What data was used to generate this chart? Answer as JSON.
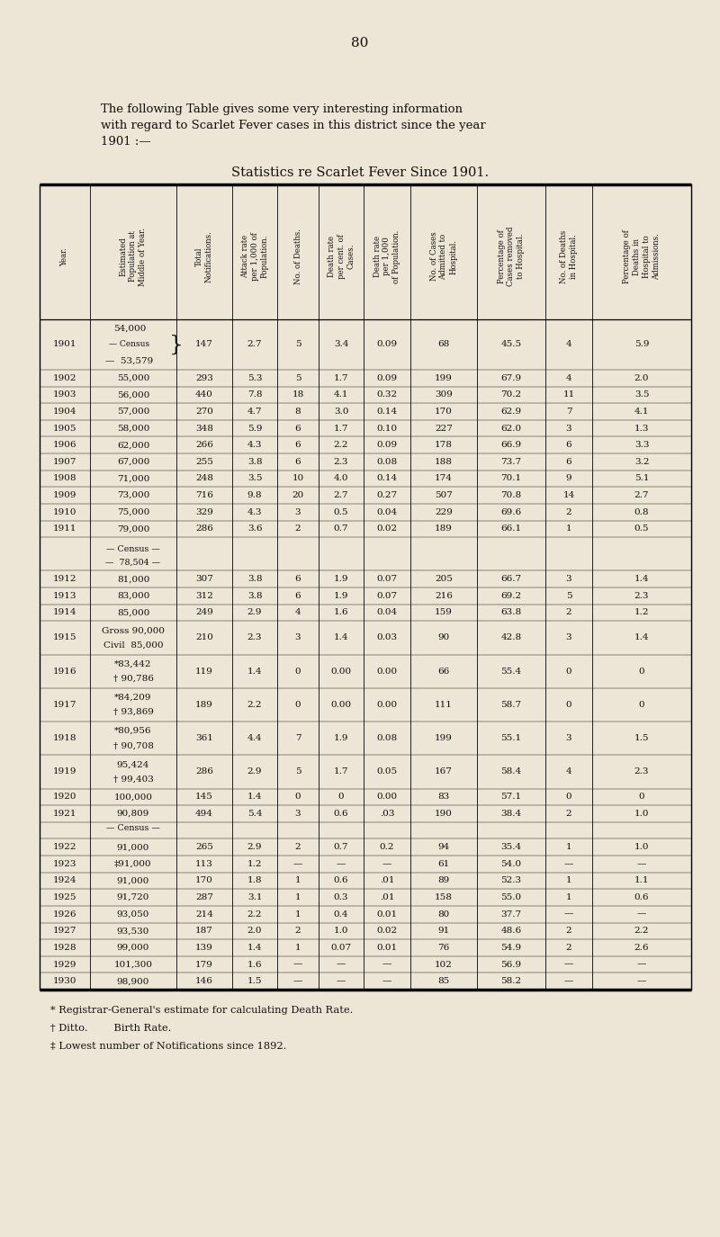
{
  "page_number": "80",
  "intro_line1": "The following Table gives some very interesting information",
  "intro_line2": "with regard to Scarlet Fever cases in this district since the year",
  "intro_line3": "1901 :—",
  "title": "Statistics re Scarlet Fever Since 1901.",
  "col_headers": [
    "Year.",
    "Estimated\nPopulation at\nMiddle of Year.",
    "Total\nNotifications.",
    "Attack rate\nper 1,000 of\nPopulation.",
    "No. of Deaths.",
    "Death rate\nper cent. of\nCases.",
    "Death rate\nper 1,000\nof Population.",
    "No. of Cases\nAdmitted to\nHospital.",
    "Percentage of\nCases removed\nto Hospital.",
    "No. of Deaths\nin Hospital.",
    "Percentage of\nDeaths in\nHospital to\nAdmissions."
  ],
  "rows": [
    {
      "year": "1901",
      "pop": "54,000",
      "pop2": "— Census",
      "pop3": "—  53,579",
      "pop_brace": true,
      "notif": "147",
      "attack": "2.7",
      "deaths": "5",
      "dr_pct": "3.4",
      "dr_1000": "0.09",
      "hosp_cases": "68",
      "pct_hosp": "45.5",
      "hosp_deaths": "4",
      "pct_hosp_deaths": "5.9",
      "tall": 3
    },
    {
      "year": "1902",
      "pop": "55,000",
      "notif": "293",
      "attack": "5.3",
      "deaths": "5",
      "dr_pct": "1.7",
      "dr_1000": "0.09",
      "hosp_cases": "199",
      "pct_hosp": "67.9",
      "hosp_deaths": "4",
      "pct_hosp_deaths": "2.0",
      "tall": 1
    },
    {
      "year": "1903",
      "pop": "56,000",
      "notif": "440",
      "attack": "7.8",
      "deaths": "18",
      "dr_pct": "4.1",
      "dr_1000": "0.32",
      "hosp_cases": "309",
      "pct_hosp": "70.2",
      "hosp_deaths": "11",
      "pct_hosp_deaths": "3.5",
      "tall": 1
    },
    {
      "year": "1904",
      "pop": "57,000",
      "notif": "270",
      "attack": "4.7",
      "deaths": "8",
      "dr_pct": "3.0",
      "dr_1000": "0.14",
      "hosp_cases": "170",
      "pct_hosp": "62.9",
      "hosp_deaths": "7",
      "pct_hosp_deaths": "4.1",
      "tall": 1
    },
    {
      "year": "1905",
      "pop": "58,000",
      "notif": "348",
      "attack": "5.9",
      "deaths": "6",
      "dr_pct": "1.7",
      "dr_1000": "0.10",
      "hosp_cases": "227",
      "pct_hosp": "62.0",
      "hosp_deaths": "3",
      "pct_hosp_deaths": "1.3",
      "tall": 1
    },
    {
      "year": "1906",
      "pop": "62,000",
      "notif": "266",
      "attack": "4.3",
      "deaths": "6",
      "dr_pct": "2.2",
      "dr_1000": "0.09",
      "hosp_cases": "178",
      "pct_hosp": "66.9",
      "hosp_deaths": "6",
      "pct_hosp_deaths": "3.3",
      "tall": 1
    },
    {
      "year": "1907",
      "pop": "67,000",
      "notif": "255",
      "attack": "3.8",
      "deaths": "6",
      "dr_pct": "2.3",
      "dr_1000": "0.08",
      "hosp_cases": "188",
      "pct_hosp": "73.7",
      "hosp_deaths": "6",
      "pct_hosp_deaths": "3.2",
      "tall": 1
    },
    {
      "year": "1908",
      "pop": "71,000",
      "notif": "248",
      "attack": "3.5",
      "deaths": "10",
      "dr_pct": "4.0",
      "dr_1000": "0.14",
      "hosp_cases": "174",
      "pct_hosp": "70.1",
      "hosp_deaths": "9",
      "pct_hosp_deaths": "5.1",
      "tall": 1
    },
    {
      "year": "1909",
      "pop": "73,000",
      "notif": "716",
      "attack": "9.8",
      "deaths": "20",
      "dr_pct": "2.7",
      "dr_1000": "0.27",
      "hosp_cases": "507",
      "pct_hosp": "70.8",
      "hosp_deaths": "14",
      "pct_hosp_deaths": "2.7",
      "tall": 1
    },
    {
      "year": "1910",
      "pop": "75,000",
      "notif": "329",
      "attack": "4.3",
      "deaths": "3",
      "dr_pct": "0.5",
      "dr_1000": "0.04",
      "hosp_cases": "229",
      "pct_hosp": "69.6",
      "hosp_deaths": "2",
      "pct_hosp_deaths": "0.8",
      "tall": 1
    },
    {
      "year": "1911",
      "pop": "79,000",
      "notif": "286",
      "attack": "3.6",
      "deaths": "2",
      "dr_pct": "0.7",
      "dr_1000": "0.02",
      "hosp_cases": "189",
      "pct_hosp": "66.1",
      "hosp_deaths": "1",
      "pct_hosp_deaths": "0.5",
      "tall": 1
    },
    {
      "year": "",
      "pop": "— Census —",
      "pop2": "—  78,504 —",
      "census_row": true,
      "notif": "",
      "attack": "",
      "deaths": "",
      "dr_pct": "",
      "dr_1000": "",
      "hosp_cases": "",
      "pct_hosp": "",
      "hosp_deaths": "",
      "pct_hosp_deaths": "",
      "tall": 2
    },
    {
      "year": "1912",
      "pop": "81,000",
      "notif": "307",
      "attack": "3.8",
      "deaths": "6",
      "dr_pct": "1.9",
      "dr_1000": "0.07",
      "hosp_cases": "205",
      "pct_hosp": "66.7",
      "hosp_deaths": "3",
      "pct_hosp_deaths": "1.4",
      "tall": 1
    },
    {
      "year": "1913",
      "pop": "83,000",
      "notif": "312",
      "attack": "3.8",
      "deaths": "6",
      "dr_pct": "1.9",
      "dr_1000": "0.07",
      "hosp_cases": "216",
      "pct_hosp": "69.2",
      "hosp_deaths": "5",
      "pct_hosp_deaths": "2.3",
      "tall": 1
    },
    {
      "year": "1914",
      "pop": "85,000",
      "notif": "249",
      "attack": "2.9",
      "deaths": "4",
      "dr_pct": "1.6",
      "dr_1000": "0.04",
      "hosp_cases": "159",
      "pct_hosp": "63.8",
      "hosp_deaths": "2",
      "pct_hosp_deaths": "1.2",
      "tall": 1
    },
    {
      "year": "1915",
      "pop": "Gross 90,000",
      "pop2": "Civil  85,000",
      "notif": "210",
      "attack": "2.3",
      "deaths": "3",
      "dr_pct": "1.4",
      "dr_1000": "0.03",
      "hosp_cases": "90",
      "pct_hosp": "42.8",
      "hosp_deaths": "3",
      "pct_hosp_deaths": "1.4",
      "tall": 2
    },
    {
      "year": "1916",
      "pop": "*83,442",
      "pop2": "† 90,786",
      "notif": "119",
      "attack": "1.4",
      "deaths": "0",
      "dr_pct": "0.00",
      "dr_1000": "0.00",
      "hosp_cases": "66",
      "pct_hosp": "55.4",
      "hosp_deaths": "0",
      "pct_hosp_deaths": "0",
      "tall": 2
    },
    {
      "year": "1917",
      "pop": "*84,209",
      "pop2": "† 93,869",
      "notif": "189",
      "attack": "2.2",
      "deaths": "0",
      "dr_pct": "0.00",
      "dr_1000": "0.00",
      "hosp_cases": "111",
      "pct_hosp": "58.7",
      "hosp_deaths": "0",
      "pct_hosp_deaths": "0",
      "tall": 2
    },
    {
      "year": "1918",
      "pop": "*80,956",
      "pop2": "† 90,708",
      "notif": "361",
      "attack": "4.4",
      "deaths": "7",
      "dr_pct": "1.9",
      "dr_1000": "0.08",
      "hosp_cases": "199",
      "pct_hosp": "55.1",
      "hosp_deaths": "3",
      "pct_hosp_deaths": "1.5",
      "tall": 2
    },
    {
      "year": "1919",
      "pop": "95,424",
      "pop2": "† 99,403",
      "notif": "286",
      "attack": "2.9",
      "deaths": "5",
      "dr_pct": "1.7",
      "dr_1000": "0.05",
      "hosp_cases": "167",
      "pct_hosp": "58.4",
      "hosp_deaths": "4",
      "pct_hosp_deaths": "2.3",
      "tall": 2
    },
    {
      "year": "1920",
      "pop": "100,000",
      "notif": "145",
      "attack": "1.4",
      "deaths": "0",
      "dr_pct": "0",
      "dr_1000": "0.00",
      "hosp_cases": "83",
      "pct_hosp": "57.1",
      "hosp_deaths": "0",
      "pct_hosp_deaths": "0",
      "tall": 1
    },
    {
      "year": "1921",
      "pop": "90,809",
      "notif": "494",
      "attack": "5.4",
      "deaths": "3",
      "dr_pct": "0.6",
      "dr_1000": ".03",
      "hosp_cases": "190",
      "pct_hosp": "38.4",
      "hosp_deaths": "2",
      "pct_hosp_deaths": "1.0",
      "tall": 1
    },
    {
      "year": "",
      "pop": "— Census —",
      "census_row": true,
      "notif": "",
      "attack": "",
      "deaths": "",
      "dr_pct": "",
      "dr_1000": "",
      "hosp_cases": "",
      "pct_hosp": "",
      "hosp_deaths": "",
      "pct_hosp_deaths": "",
      "tall": 1
    },
    {
      "year": "1922",
      "pop": "91,000",
      "notif": "265",
      "attack": "2.9",
      "deaths": "2",
      "dr_pct": "0.7",
      "dr_1000": "0.2",
      "hosp_cases": "94",
      "pct_hosp": "35.4",
      "hosp_deaths": "1",
      "pct_hosp_deaths": "1.0",
      "tall": 1
    },
    {
      "year": "1923",
      "pop": "‡91,000",
      "notif": "113",
      "attack": "1.2",
      "deaths": "—",
      "dr_pct": "—",
      "dr_1000": "—",
      "hosp_cases": "61",
      "pct_hosp": "54.0",
      "hosp_deaths": "—",
      "pct_hosp_deaths": "—",
      "tall": 1
    },
    {
      "year": "1924",
      "pop": "91,000",
      "notif": "170",
      "attack": "1.8",
      "deaths": "1",
      "dr_pct": "0.6",
      "dr_1000": ".01",
      "hosp_cases": "89",
      "pct_hosp": "52.3",
      "hosp_deaths": "1",
      "pct_hosp_deaths": "1.1",
      "tall": 1
    },
    {
      "year": "1925",
      "pop": "91,720",
      "notif": "287",
      "attack": "3.1",
      "deaths": "1",
      "dr_pct": "0.3",
      "dr_1000": ".01",
      "hosp_cases": "158",
      "pct_hosp": "55.0",
      "hosp_deaths": "1",
      "pct_hosp_deaths": "0.6",
      "tall": 1
    },
    {
      "year": "1926",
      "pop": "93,050",
      "notif": "214",
      "attack": "2.2",
      "deaths": "1",
      "dr_pct": "0.4",
      "dr_1000": "0.01",
      "hosp_cases": "80",
      "pct_hosp": "37.7",
      "hosp_deaths": "—",
      "pct_hosp_deaths": "—",
      "tall": 1
    },
    {
      "year": "1927",
      "pop": "93,530",
      "notif": "187",
      "attack": "2.0",
      "deaths": "2",
      "dr_pct": "1.0",
      "dr_1000": "0.02",
      "hosp_cases": "91",
      "pct_hosp": "48.6",
      "hosp_deaths": "2",
      "pct_hosp_deaths": "2.2",
      "tall": 1
    },
    {
      "year": "1928",
      "pop": "99,000",
      "notif": "139",
      "attack": "1.4",
      "deaths": "1",
      "dr_pct": "0.07",
      "dr_1000": "0.01",
      "hosp_cases": "76",
      "pct_hosp": "54.9",
      "hosp_deaths": "2",
      "pct_hosp_deaths": "2.6",
      "tall": 1
    },
    {
      "year": "1929",
      "pop": "101,300",
      "notif": "179",
      "attack": "1.6",
      "deaths": "—",
      "dr_pct": "—",
      "dr_1000": "—",
      "hosp_cases": "102",
      "pct_hosp": "56.9",
      "hosp_deaths": "—",
      "pct_hosp_deaths": "—",
      "tall": 1
    },
    {
      "year": "1930",
      "pop": "98,900",
      "notif": "146",
      "attack": "1.5",
      "deaths": "—",
      "dr_pct": "—",
      "dr_1000": "—",
      "hosp_cases": "85",
      "pct_hosp": "58.2",
      "hosp_deaths": "—",
      "pct_hosp_deaths": "—",
      "tall": 1
    }
  ],
  "footnotes": [
    "* Registrar-General's estimate for calculating Death Rate.",
    "† Ditto.        Birth Rate.",
    "‡ Lowest number of Notifications since 1892."
  ],
  "bg_color": "#ede5d5",
  "text_color": "#111111"
}
